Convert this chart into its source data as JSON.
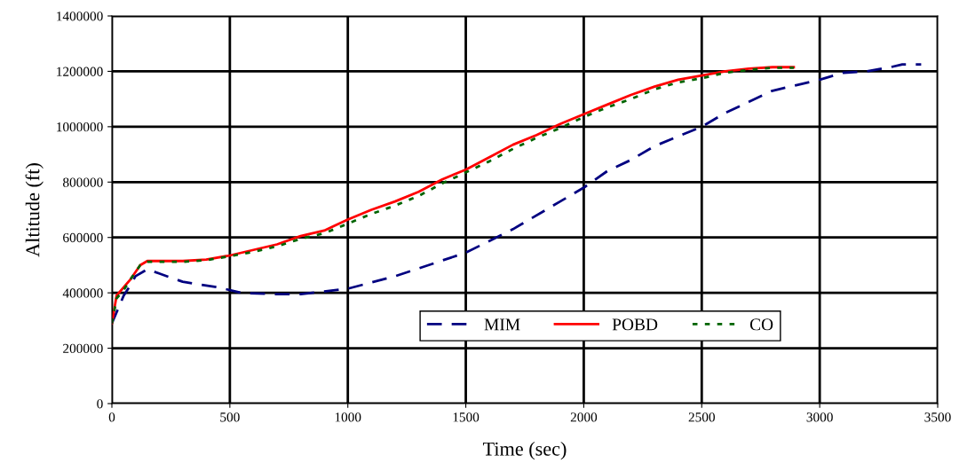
{
  "chart_data": {
    "type": "line",
    "xlabel": "Time (sec)",
    "ylabel": "Altitude (ft)",
    "xlim": [
      0,
      3500
    ],
    "xticks": [
      0,
      500,
      1000,
      1500,
      2000,
      2500,
      3000,
      3500
    ],
    "ylim": [
      0,
      1400000
    ],
    "yticks": [
      0,
      200000,
      400000,
      600000,
      800000,
      1000000,
      1200000,
      1400000
    ],
    "grid": true,
    "legend": "bottom right",
    "series": [
      {
        "name": "MIM",
        "color": "#000080",
        "line_style": "dashed",
        "x": [
          0,
          30,
          50,
          80,
          100,
          150,
          200,
          300,
          450,
          550,
          700,
          800,
          1000,
          1200,
          1500,
          1700,
          1900,
          2000,
          2100,
          2200,
          2300,
          2500,
          2600,
          2700,
          2800,
          2900,
          3000,
          3100,
          3200,
          3300,
          3350,
          3430
        ],
        "values": [
          290000,
          350000,
          390000,
          430000,
          460000,
          485000,
          470000,
          440000,
          420000,
          400000,
          395000,
          395000,
          415000,
          460000,
          545000,
          630000,
          730000,
          780000,
          840000,
          880000,
          930000,
          1000000,
          1050000,
          1090000,
          1130000,
          1150000,
          1170000,
          1195000,
          1200000,
          1215000,
          1225000,
          1225000
        ]
      },
      {
        "name": "POBD",
        "color": "#ff0000",
        "line_style": "solid",
        "x": [
          0,
          20,
          50,
          80,
          120,
          150,
          300,
          400,
          500,
          600,
          700,
          800,
          900,
          1000,
          1100,
          1200,
          1300,
          1400,
          1500,
          1600,
          1700,
          1800,
          1900,
          2000,
          2100,
          2200,
          2300,
          2400,
          2500,
          2600,
          2700,
          2800,
          2890
        ],
        "values": [
          290000,
          390000,
          420000,
          450000,
          500000,
          515000,
          515000,
          520000,
          535000,
          555000,
          575000,
          605000,
          625000,
          665000,
          700000,
          730000,
          765000,
          810000,
          845000,
          890000,
          935000,
          970000,
          1010000,
          1045000,
          1080000,
          1115000,
          1145000,
          1170000,
          1185000,
          1200000,
          1210000,
          1215000,
          1215000
        ]
      },
      {
        "name": "CO",
        "color": "#006400",
        "line_style": "dotted",
        "x": [
          0,
          20,
          50,
          80,
          120,
          150,
          300,
          400,
          500,
          600,
          700,
          800,
          900,
          1000,
          1100,
          1200,
          1300,
          1400,
          1500,
          1600,
          1700,
          1800,
          1900,
          2000,
          2100,
          2200,
          2300,
          2400,
          2500,
          2600,
          2700,
          2800,
          2890
        ],
        "values": [
          290000,
          380000,
          410000,
          450000,
          500000,
          512000,
          512000,
          518000,
          532000,
          548000,
          568000,
          595000,
          615000,
          650000,
          685000,
          715000,
          750000,
          795000,
          835000,
          875000,
          920000,
          960000,
          995000,
          1035000,
          1070000,
          1100000,
          1135000,
          1160000,
          1175000,
          1195000,
          1205000,
          1213000,
          1213000
        ]
      }
    ]
  }
}
